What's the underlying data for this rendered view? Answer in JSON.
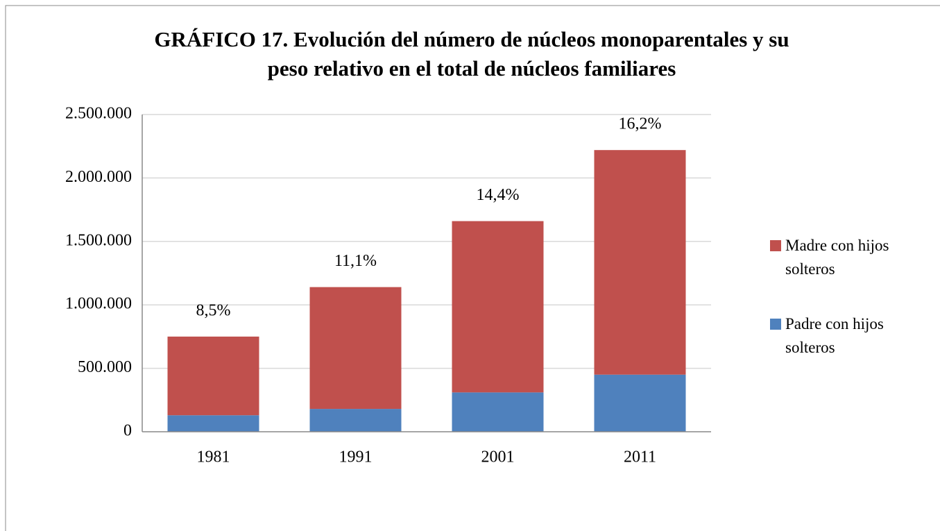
{
  "chart_data": {
    "type": "stacked_bar",
    "title": "GRÁFICO 17. Evolución del número de núcleos monoparentales y su peso relativo en el total de núcleos familiares",
    "categories": [
      "1981",
      "1991",
      "2001",
      "2011"
    ],
    "series": [
      {
        "name": "Padre con hijos solteros",
        "color": "#4f81bd",
        "values": [
          130000,
          180000,
          310000,
          450000
        ]
      },
      {
        "name": "Madre con hijos solteros",
        "color": "#c0504d",
        "values": [
          620000,
          960000,
          1350000,
          1770000
        ]
      }
    ],
    "annotations": {
      "values": [
        8.5,
        11.1,
        14.4,
        16.2
      ],
      "value_labels": [
        "8,5%",
        "11,1%",
        "14,4%",
        "16,2%"
      ]
    },
    "ylim": [
      0,
      2500000
    ],
    "yticks": [
      0,
      {
        "value": 500000,
        "label": "500.000"
      },
      {
        "value": 1000000,
        "label": "1.000.000"
      },
      {
        "value": 1500000,
        "label": "1.500.000"
      },
      {
        "value": 2000000,
        "label": "2.000.000"
      },
      {
        "value": 2500000,
        "label": "2.500.000"
      }
    ],
    "grid": true,
    "legend": "right"
  }
}
